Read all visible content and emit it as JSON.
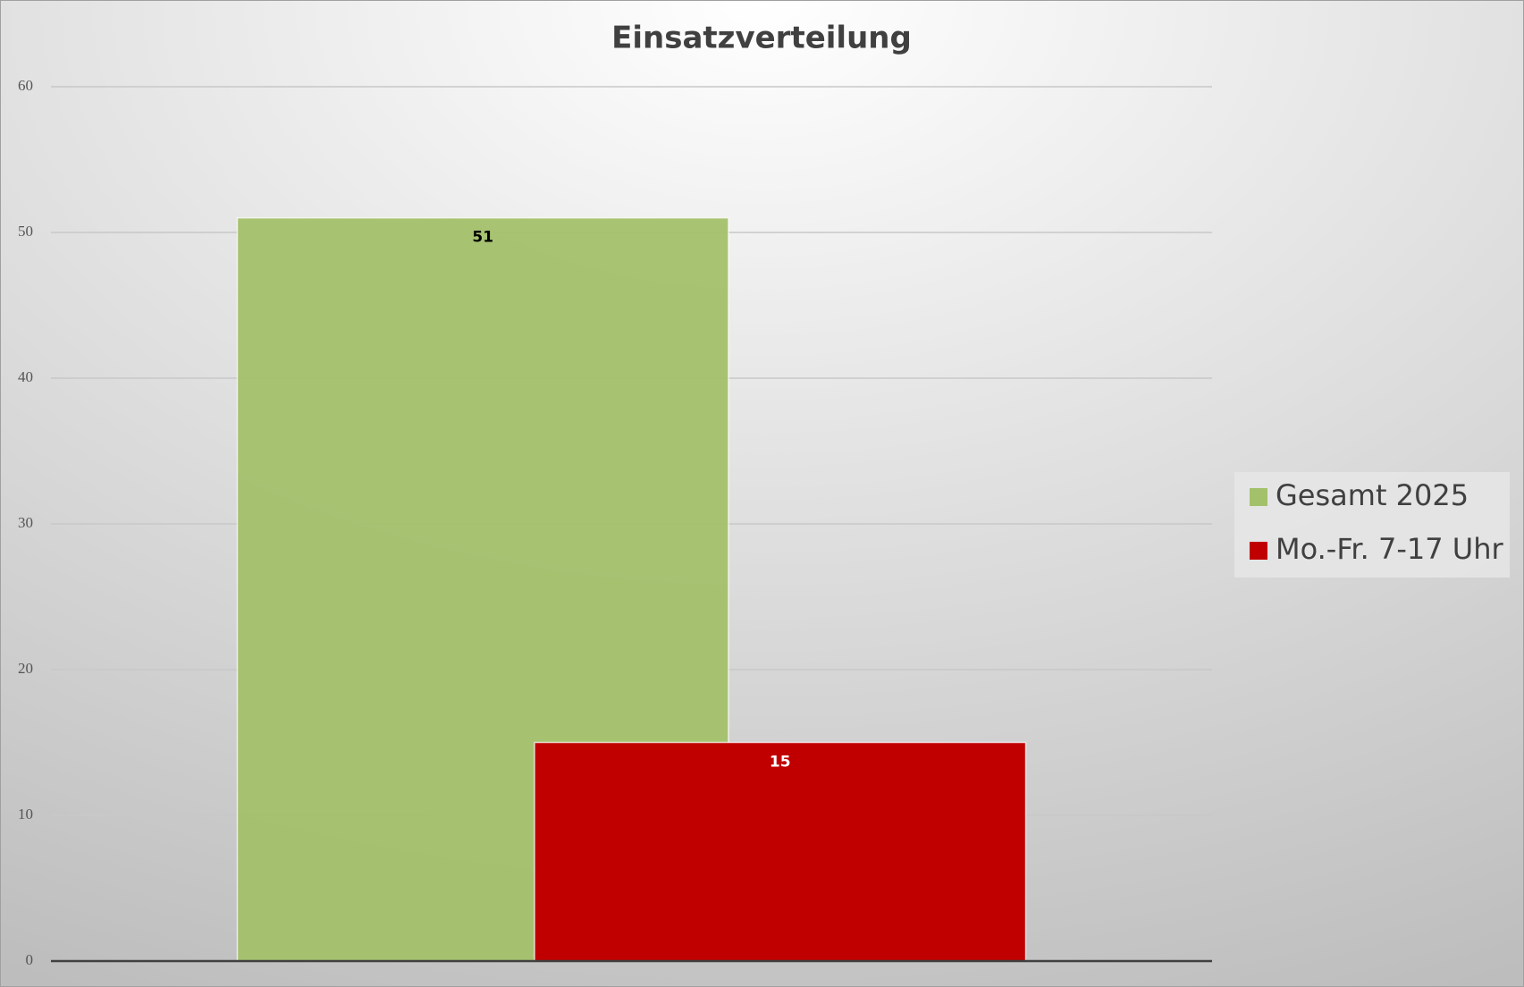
{
  "chart_data": {
    "type": "bar",
    "title": "Einsatzverteilung",
    "categories": [
      null
    ],
    "series": [
      {
        "name": "Gesamt 2025",
        "color": "#a3c16b",
        "values": [
          51
        ]
      },
      {
        "name": "Mo.-Fr. 7-17 Uhr",
        "color": "#c00000",
        "values": [
          15
        ]
      }
    ],
    "ylim": [
      0,
      60
    ],
    "yticks": [
      0,
      10,
      20,
      30,
      40,
      50,
      60
    ],
    "grid": true,
    "legend": "right"
  }
}
